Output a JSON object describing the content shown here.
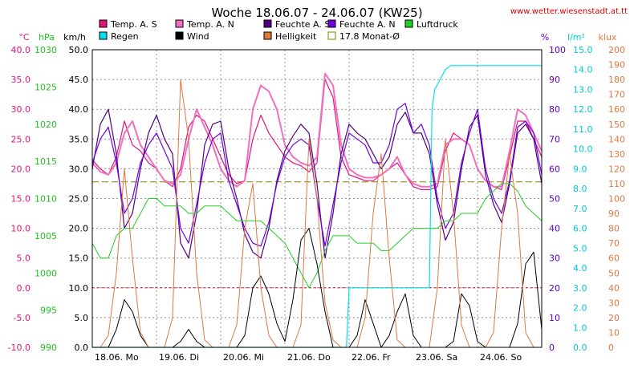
{
  "chart_data": {
    "type": "line",
    "title": "Woche 18.06.07 - 24.06.07 (KW25)",
    "source": "www.wetter.wiesenstadt.at.tt",
    "x_labels": [
      "18.06. Mo",
      "19.06. Di",
      "20.06. Mi",
      "21.06. Do",
      "22.06. Fr",
      "23.06. Sa",
      "24.06. So"
    ],
    "x_range_hours": [
      0,
      168
    ],
    "grid": true,
    "legend_position": "top",
    "axes": [
      {
        "unit": "°C",
        "color": "#e0157a",
        "min": -10,
        "max": 40,
        "step": 5,
        "format": "1"
      },
      {
        "unit": "hPa",
        "color": "#20c020",
        "min": 990,
        "max": 1030,
        "step": 5,
        "format": "0"
      },
      {
        "unit": "km/h",
        "color": "#000000",
        "min": 0,
        "max": 50,
        "step": 5,
        "format": "1"
      },
      {
        "unit": "%",
        "color": "#6000c0",
        "min": 0,
        "max": 100,
        "step": 10,
        "format": "0"
      },
      {
        "unit": "l/m²",
        "color": "#00c8d8",
        "min": 0,
        "max": 15,
        "step": 1,
        "format": "1"
      },
      {
        "unit": "klux",
        "color": "#e07840",
        "min": 0,
        "max": 200,
        "step": 10,
        "format": "0"
      }
    ],
    "legend": [
      {
        "label": "Temp. A. S",
        "color": "#e0157a",
        "style": "filled"
      },
      {
        "label": "Temp. A. N",
        "color": "#f070c0",
        "style": "filled"
      },
      {
        "label": "Feuchte A. S",
        "color": "#500080",
        "style": "filled"
      },
      {
        "label": "Feuchte A. N",
        "color": "#7000e0",
        "style": "filled"
      },
      {
        "label": "Luftdruck",
        "color": "#20d020",
        "style": "filled"
      },
      {
        "label": "Regen",
        "color": "#00e0f0",
        "style": "filled"
      },
      {
        "label": "Wind",
        "color": "#000000",
        "style": "filled"
      },
      {
        "label": "Helligkeit",
        "color": "#e07840",
        "style": "filled"
      },
      {
        "label": "17.8 Monat-Ø",
        "color": "#808000",
        "style": "outline"
      }
    ],
    "monthly_average_temp": 17.8,
    "series": [
      {
        "name": "Temp. A. S",
        "color": "#e0157a",
        "width": 1.2,
        "axis": 0,
        "x": [
          0,
          3,
          6,
          9,
          12,
          15,
          18,
          21,
          24,
          27,
          30,
          33,
          36,
          39,
          42,
          45,
          48,
          51,
          54,
          57,
          60,
          63,
          66,
          69,
          72,
          75,
          78,
          81,
          84,
          87,
          90,
          93,
          96,
          99,
          102,
          105,
          108,
          111,
          114,
          117,
          120,
          123,
          126,
          129,
          132,
          135,
          138,
          141,
          144,
          147,
          150,
          153,
          156,
          159,
          162,
          165,
          168
        ],
        "y": [
          21.5,
          20,
          19,
          22,
          28,
          24,
          23,
          21,
          20,
          18,
          17,
          20,
          27,
          29,
          28,
          25,
          22,
          19,
          17.5,
          18,
          25,
          29,
          26,
          24,
          22,
          21,
          20.5,
          19.5,
          21,
          35,
          32,
          22,
          19,
          18.5,
          18,
          18,
          19,
          20,
          21,
          19,
          17,
          16.5,
          16.5,
          17,
          23,
          26,
          25,
          24,
          20,
          18,
          17,
          16.5,
          22,
          28,
          28,
          25,
          22
        ]
      },
      {
        "name": "Temp. A. N",
        "color": "#f070c0",
        "width": 2,
        "axis": 0,
        "x": [
          0,
          3,
          6,
          9,
          12,
          15,
          18,
          21,
          24,
          27,
          30,
          33,
          36,
          39,
          42,
          45,
          48,
          51,
          54,
          57,
          60,
          63,
          66,
          69,
          72,
          75,
          78,
          81,
          84,
          87,
          90,
          93,
          96,
          99,
          102,
          105,
          108,
          111,
          114,
          117,
          120,
          123,
          126,
          129,
          132,
          135,
          138,
          141,
          144,
          147,
          150,
          153,
          156,
          159,
          162,
          165,
          168
        ],
        "y": [
          21,
          19.5,
          19,
          21,
          26,
          28,
          24,
          22,
          20,
          18,
          17.5,
          19,
          25,
          30,
          27,
          24,
          20,
          18,
          17,
          18,
          30,
          34,
          33,
          30,
          24,
          22,
          21,
          20.5,
          22,
          36,
          34,
          24,
          20,
          19,
          18.5,
          18.5,
          19,
          20,
          22,
          19,
          17.5,
          17,
          17,
          17.5,
          24,
          25,
          25,
          24,
          20,
          18,
          17,
          17,
          23,
          30,
          29,
          26,
          23
        ]
      },
      {
        "name": "Feuchte A. S",
        "color": "#500080",
        "width": 1.2,
        "axis": 3,
        "x": [
          0,
          3,
          6,
          9,
          12,
          15,
          18,
          21,
          24,
          27,
          30,
          33,
          36,
          39,
          42,
          45,
          48,
          51,
          54,
          57,
          60,
          63,
          66,
          69,
          72,
          75,
          78,
          81,
          84,
          87,
          90,
          93,
          96,
          99,
          102,
          105,
          108,
          111,
          114,
          117,
          120,
          123,
          126,
          129,
          132,
          135,
          138,
          141,
          144,
          147,
          150,
          153,
          156,
          159,
          162,
          165,
          168
        ],
        "y": [
          60,
          75,
          80,
          65,
          40,
          45,
          60,
          72,
          78,
          70,
          65,
          35,
          30,
          45,
          68,
          75,
          76,
          60,
          50,
          38,
          32,
          30,
          40,
          56,
          66,
          71,
          75,
          72,
          55,
          30,
          45,
          65,
          75,
          72,
          70,
          65,
          60,
          64,
          75,
          79,
          72,
          72,
          65,
          48,
          36,
          42,
          60,
          74,
          78,
          58,
          48,
          42,
          55,
          72,
          75,
          70,
          55
        ]
      },
      {
        "name": "Feuchte A. N",
        "color": "#7000e0",
        "width": 1.2,
        "axis": 3,
        "x": [
          0,
          3,
          6,
          9,
          12,
          15,
          18,
          21,
          24,
          27,
          30,
          33,
          36,
          39,
          42,
          45,
          48,
          51,
          54,
          57,
          60,
          63,
          66,
          69,
          72,
          75,
          78,
          81,
          84,
          87,
          90,
          93,
          96,
          99,
          102,
          105,
          108,
          111,
          114,
          117,
          120,
          123,
          126,
          129,
          132,
          135,
          138,
          141,
          144,
          147,
          150,
          153,
          156,
          159,
          162,
          165,
          168
        ],
        "y": [
          62,
          70,
          74,
          62,
          45,
          50,
          62,
          68,
          72,
          66,
          60,
          40,
          35,
          48,
          62,
          70,
          72,
          56,
          48,
          40,
          35,
          34,
          42,
          55,
          64,
          68,
          70,
          68,
          50,
          34,
          48,
          62,
          72,
          70,
          68,
          62,
          62,
          68,
          80,
          82,
          72,
          75,
          68,
          50,
          40,
          45,
          62,
          72,
          80,
          60,
          50,
          45,
          56,
          74,
          76,
          72,
          58
        ]
      },
      {
        "name": "Luftdruck",
        "color": "#20d020",
        "width": 1,
        "axis": 1,
        "x": [
          0,
          3,
          6,
          9,
          12,
          15,
          18,
          21,
          24,
          27,
          30,
          33,
          36,
          39,
          42,
          45,
          48,
          51,
          54,
          57,
          60,
          63,
          66,
          69,
          72,
          75,
          78,
          81,
          84,
          87,
          90,
          93,
          96,
          99,
          102,
          105,
          108,
          111,
          114,
          117,
          120,
          123,
          126,
          129,
          132,
          135,
          138,
          141,
          144,
          147,
          150,
          153,
          156,
          159,
          162,
          165,
          168
        ],
        "y": [
          1004,
          1002,
          1002,
          1005,
          1006,
          1006,
          1008,
          1010,
          1010,
          1009,
          1009,
          1009,
          1008,
          1008,
          1009,
          1009,
          1009,
          1008,
          1007,
          1007,
          1007,
          1007,
          1006,
          1005,
          1004,
          1002,
          1000,
          998,
          1000,
          1003,
          1005,
          1005,
          1005,
          1004,
          1004,
          1004,
          1003,
          1003,
          1004,
          1005,
          1006,
          1006,
          1006,
          1006,
          1007,
          1007,
          1008,
          1008,
          1008,
          1010,
          1011,
          1012,
          1012,
          1011,
          1009,
          1008,
          1007
        ]
      },
      {
        "name": "Regen",
        "color": "#00e0f0",
        "width": 1.2,
        "axis": 4,
        "x": [
          0,
          20,
          40,
          60,
          80,
          94,
          95,
          96,
          100,
          110,
          120,
          126,
          127,
          128,
          130,
          132,
          134,
          136,
          140,
          150,
          160,
          168
        ],
        "y": [
          0,
          0,
          0,
          0,
          0,
          0,
          0,
          3,
          3,
          3,
          3,
          3,
          12,
          13,
          13.5,
          14,
          14.2,
          14.2,
          14.2,
          14.2,
          14.2,
          14.2
        ]
      },
      {
        "name": "Wind",
        "color": "#000000",
        "width": 1,
        "axis": 2,
        "x": [
          0,
          3,
          6,
          9,
          12,
          15,
          18,
          21,
          24,
          27,
          30,
          33,
          36,
          39,
          42,
          45,
          48,
          51,
          54,
          57,
          60,
          63,
          66,
          69,
          72,
          75,
          78,
          81,
          84,
          87,
          90,
          93,
          96,
          99,
          102,
          105,
          108,
          111,
          114,
          117,
          120,
          123,
          126,
          129,
          132,
          135,
          138,
          141,
          144,
          147,
          150,
          153,
          156,
          159,
          162,
          165,
          168
        ],
        "y": [
          0,
          0,
          0,
          3,
          8,
          6,
          2,
          0,
          0,
          0,
          0,
          1,
          3,
          1,
          0,
          0,
          0,
          0,
          0,
          2,
          10,
          12,
          9,
          4,
          1,
          8,
          18,
          20,
          14,
          6,
          0,
          0,
          0,
          2,
          8,
          4,
          0,
          2,
          6,
          9,
          2,
          0,
          0,
          0,
          0,
          1,
          9,
          7,
          1,
          0,
          0,
          0,
          0,
          4,
          14,
          16,
          3
        ]
      },
      {
        "name": "Helligkeit",
        "color": "#e07840",
        "width": 1,
        "axis": 5,
        "x": [
          0,
          3,
          6,
          9,
          12,
          15,
          18,
          21,
          24,
          27,
          30,
          33,
          36,
          39,
          42,
          45,
          48,
          51,
          54,
          57,
          60,
          63,
          66,
          69,
          72,
          75,
          78,
          81,
          84,
          87,
          90,
          93,
          96,
          99,
          102,
          105,
          108,
          111,
          114,
          117,
          120,
          123,
          126,
          129,
          132,
          135,
          138,
          141,
          144,
          147,
          150,
          153,
          156,
          159,
          162,
          165,
          168
        ],
        "y": [
          0,
          0,
          8,
          50,
          120,
          60,
          10,
          0,
          0,
          0,
          20,
          180,
          140,
          50,
          5,
          0,
          0,
          0,
          15,
          80,
          110,
          40,
          8,
          0,
          0,
          0,
          15,
          140,
          100,
          30,
          5,
          0,
          0,
          0,
          20,
          90,
          130,
          60,
          5,
          0,
          0,
          0,
          0,
          40,
          140,
          90,
          15,
          0,
          0,
          0,
          10,
          80,
          130,
          90,
          10,
          0,
          0
        ]
      }
    ]
  }
}
